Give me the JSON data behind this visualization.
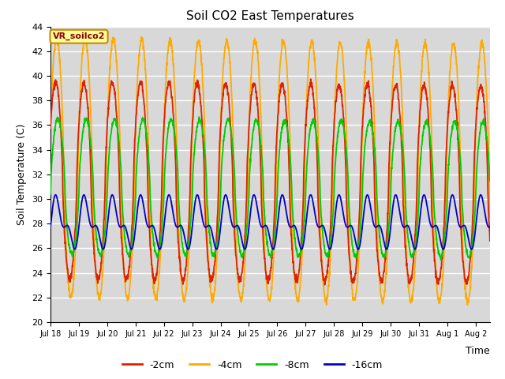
{
  "title": "Soil CO2 East Temperatures",
  "xlabel": "Time",
  "ylabel": "Soil Temperature (C)",
  "ylim": [
    20,
    44
  ],
  "yticks": [
    20,
    22,
    24,
    26,
    28,
    30,
    32,
    34,
    36,
    38,
    40,
    42,
    44
  ],
  "bg_color": "#d8d8d8",
  "fig_color": "#ffffff",
  "series": [
    {
      "label": "-2cm",
      "color": "#dd2200",
      "lw": 1.3
    },
    {
      "label": "-4cm",
      "color": "#ffaa00",
      "lw": 1.3
    },
    {
      "label": "-8cm",
      "color": "#00cc00",
      "lw": 1.3
    },
    {
      "label": "-16cm",
      "color": "#0000cc",
      "lw": 1.3
    }
  ],
  "xtick_labels": [
    "Jul 18",
    "Jul 19",
    "Jul 20",
    "Jul 21",
    "Jul 22",
    "Jul 23",
    "Jul 24",
    "Jul 25",
    "Jul 26",
    "Jul 27",
    "Jul 28",
    "Jul 29",
    "Jul 30",
    "Jul 31",
    "Aug 1",
    "Aug 2"
  ],
  "annotation_text": "VR_soilco2",
  "annotation_color": "#880000",
  "annotation_bg": "#ffff99",
  "annotation_border": "#cc8800",
  "n_days": 15.5,
  "period_2cm": 1.0,
  "period_4cm": 1.0,
  "period_8cm": 1.0,
  "period_16cm": 0.5,
  "amp_2cm": 8.0,
  "amp_4cm": 10.5,
  "amp_8cm": 5.5,
  "amp_16cm": 1.6,
  "mean_2cm": 31.5,
  "mean_4cm": 32.5,
  "mean_8cm": 31.0,
  "mean_16cm": 28.0,
  "phase_2cm": 0.45,
  "phase_4cm": 0.2,
  "phase_8cm": -0.05,
  "phase_16cm": -0.3
}
